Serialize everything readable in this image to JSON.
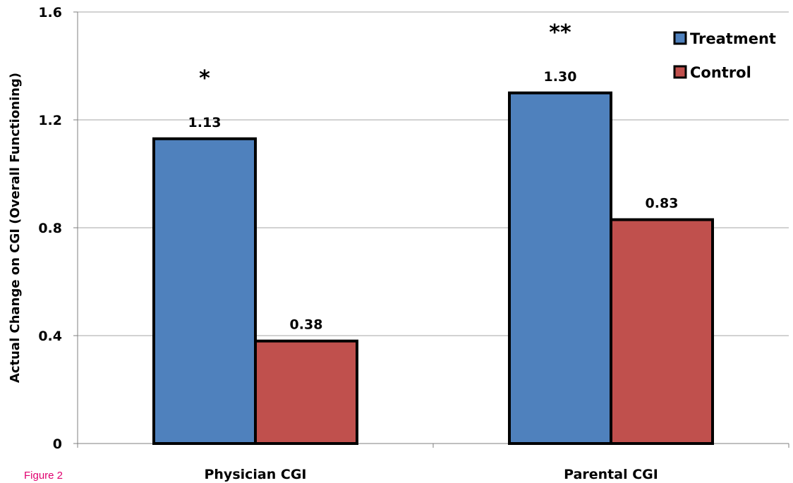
{
  "caption": "Figure 2",
  "colors": {
    "Treatment": "#4f81bd",
    "Control": "#c0504d",
    "grid": "#a6a6a6"
  },
  "chart_data": {
    "type": "bar",
    "title": "",
    "xlabel": "",
    "ylabel": "Actual Change on CGI (Overall Functioning)",
    "ylim": [
      0,
      1.6
    ],
    "yticks": [
      "0",
      "0.4",
      "0.8",
      "1.2",
      "1.6"
    ],
    "categories": [
      "Physician CGI",
      "Parental CGI"
    ],
    "series": [
      {
        "name": "Treatment",
        "values": [
          1.13,
          1.3
        ],
        "labels": [
          "1.13",
          "1.30"
        ]
      },
      {
        "name": "Control",
        "values": [
          0.38,
          0.83
        ],
        "labels": [
          "0.38",
          "0.83"
        ]
      }
    ],
    "significance": [
      "*",
      "**"
    ],
    "grid": true,
    "legend": "top-right"
  }
}
